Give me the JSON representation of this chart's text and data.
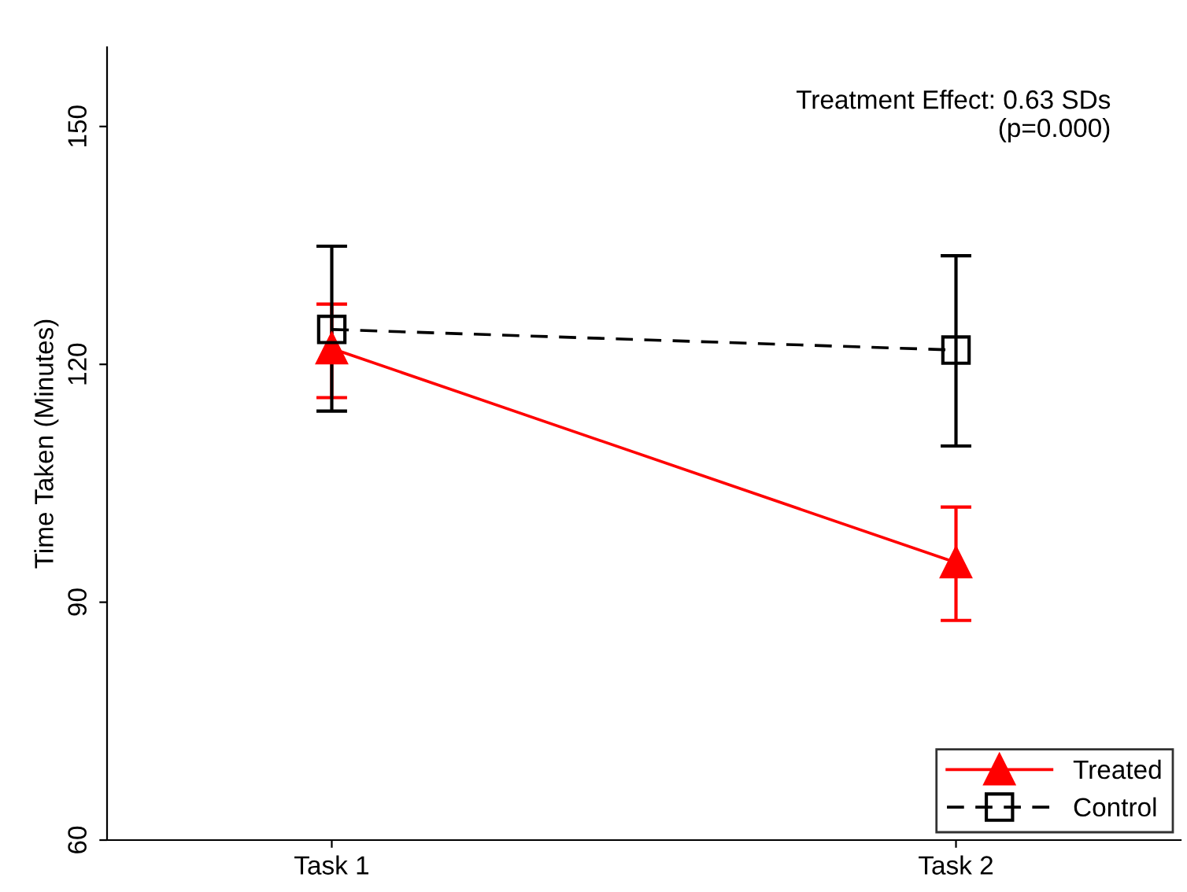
{
  "chart_data": {
    "type": "line",
    "ylabel": "Time Taken (Minutes)",
    "categories": [
      "Task 1",
      "Task 2"
    ],
    "series": [
      {
        "name": "Treated",
        "color": "#ff0000",
        "values": [
          122.0,
          95.0
        ],
        "errors": [
          [
            115.8,
            127.6
          ],
          [
            87.7,
            102.0
          ]
        ],
        "marker": "triangle",
        "line_style": "solid"
      },
      {
        "name": "Control",
        "color": "#000000",
        "values": [
          124.4,
          121.8
        ],
        "errors": [
          [
            114.1,
            134.9
          ],
          [
            109.7,
            133.7
          ]
        ],
        "marker": "square",
        "line_style": "dashed"
      }
    ],
    "ylim": [
      60,
      160
    ],
    "yticks": [
      60,
      90,
      120,
      150
    ],
    "grid": false,
    "legend": "bottom right",
    "annotations": [
      "Treatment Effect: 0.63 SDs\n(p=0.000)"
    ]
  }
}
